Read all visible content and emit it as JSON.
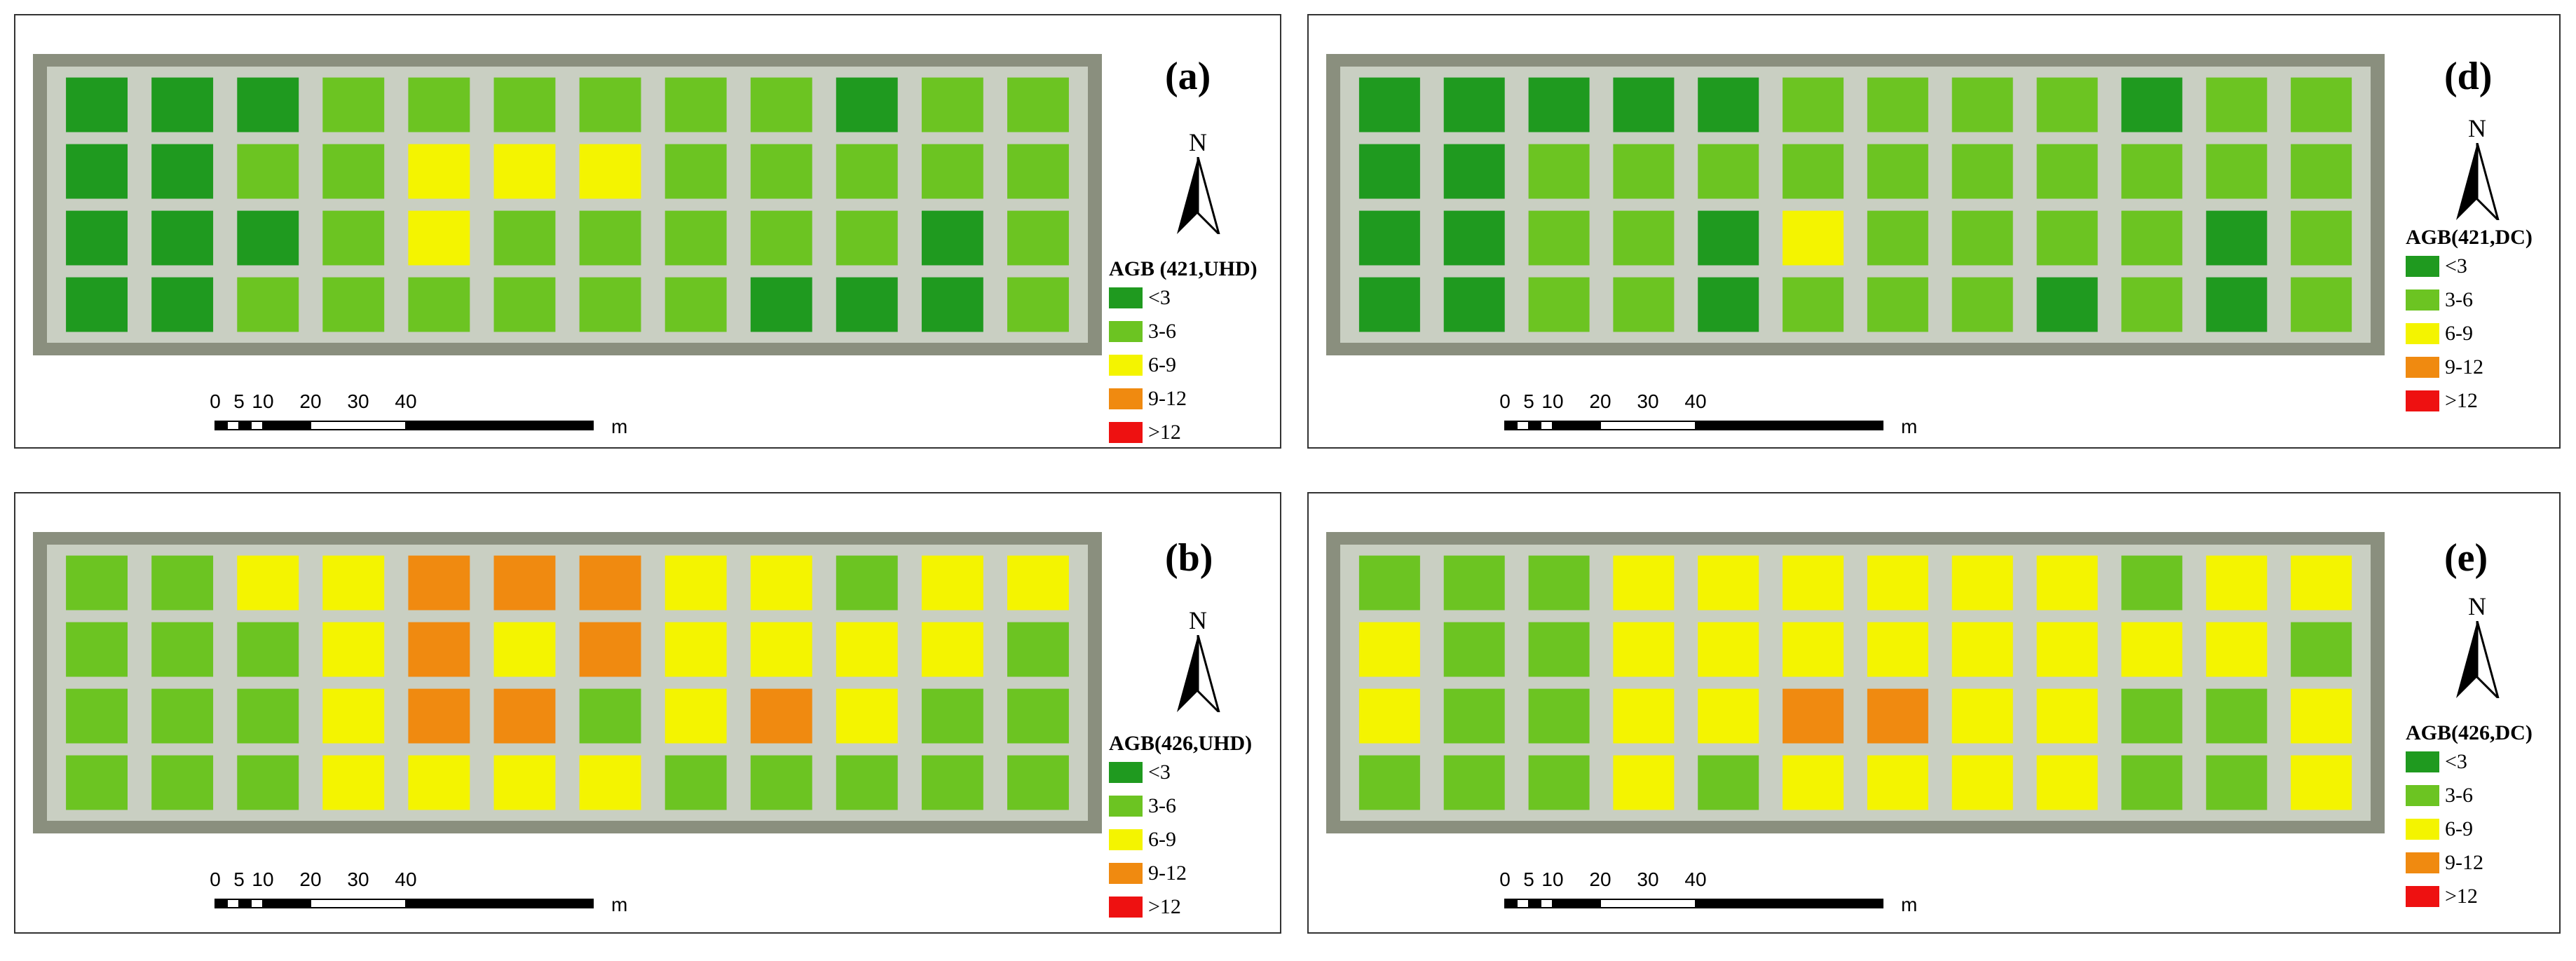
{
  "figure": {
    "legend_colors": {
      "lt3": "#1f9a1f",
      "c3_6": "#6cc422",
      "c6_9": "#f4f400",
      "c9_12": "#f08a10",
      "gt12": "#ee1111"
    },
    "plot_colors": {
      "dark": "#1f9a1f",
      "light": "#6cc422",
      "yellow": "#f4f400",
      "orange": "#f08a10"
    },
    "legend_items": [
      "<3",
      "3-6",
      "6-9",
      "9-12",
      ">12"
    ],
    "scale_ticks": [
      "0",
      "5",
      "10",
      "20",
      "30",
      "40"
    ],
    "scale_unit": "m",
    "north_label": "N",
    "north_icon": "north-arrow-icon"
  },
  "panels": [
    {
      "id": "a",
      "label": "(a)",
      "legend_title": "AGB (421,UHD)"
    },
    {
      "id": "b",
      "label": "(b)",
      "legend_title": "AGB(426,UHD)"
    },
    {
      "id": "d",
      "label": "(d)",
      "legend_title": "AGB(421,DC)"
    },
    {
      "id": "e",
      "label": "(e)",
      "legend_title": "AGB(426,DC)"
    }
  ]
}
